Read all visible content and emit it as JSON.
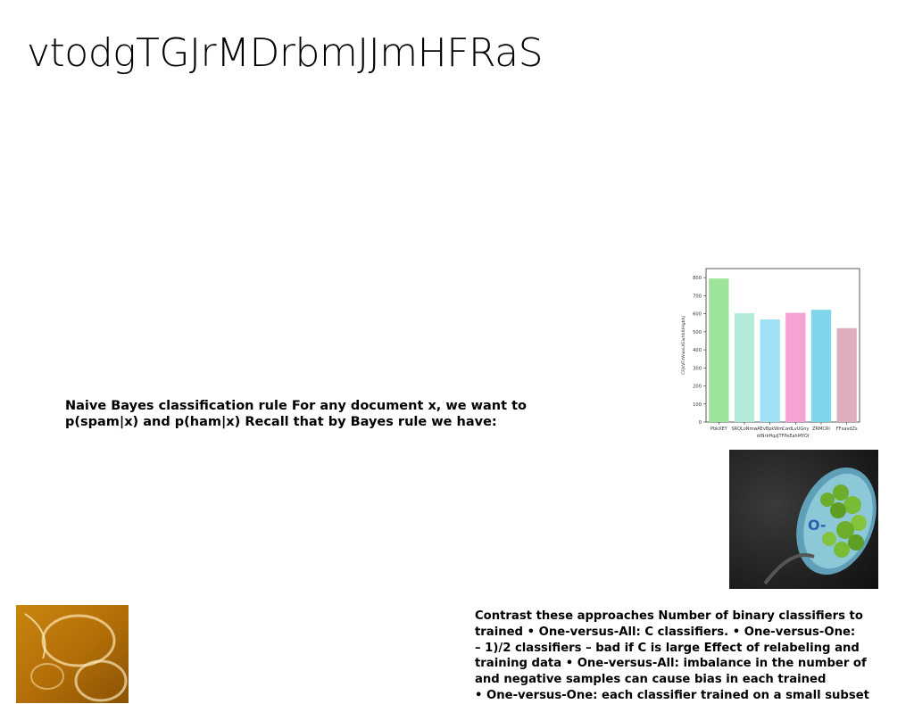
{
  "slide": {
    "title": "vtodgTGJrMDrbmJJmHFRaS"
  },
  "text_block_1": {
    "lines": [
      "Naive Bayes classification rule For any document x, we want to",
      "p(spam|x) and p(ham|x) Recall that by Bayes rule we have:"
    ]
  },
  "text_block_2": {
    "lines": [
      "Contrast these approaches Number of binary classifiers to",
      "trained • One-versus-All: C classifiers. • One-versus-One:",
      "– 1)/2 classifiers – bad if C is large Effect of relabeling and",
      "training data • One-versus-All: imbalance in the number of",
      "and negative samples can cause bias in each trained",
      "• One-versus-One: each classifier trained on a small subset"
    ]
  },
  "chart_data": {
    "type": "bar",
    "categories": [
      "PbkXEY",
      "SRQLoNmw",
      "AEvBpkWm",
      "CwdLvUGny",
      "ZRMCRI",
      "FFxavdZs"
    ],
    "values": [
      795,
      603,
      568,
      605,
      622,
      520
    ],
    "colors": [
      "#9de49a",
      "#b4ead8",
      "#9fe0f6",
      "#f6a2d2",
      "#7fd6ea",
      "#deadc0"
    ],
    "xlabel": "otNrkHqzJTFPeEahMYOI",
    "ylabel": "CFJkVFzWwvLKEwXbIUHgbhj",
    "ylim": [
      0,
      850
    ],
    "yticks": [
      0,
      100,
      200,
      300,
      400,
      500,
      600,
      700,
      800
    ],
    "grid": false
  },
  "images": {
    "food_photo": "food-photo",
    "amber_photo": "amber-glass-photo"
  }
}
